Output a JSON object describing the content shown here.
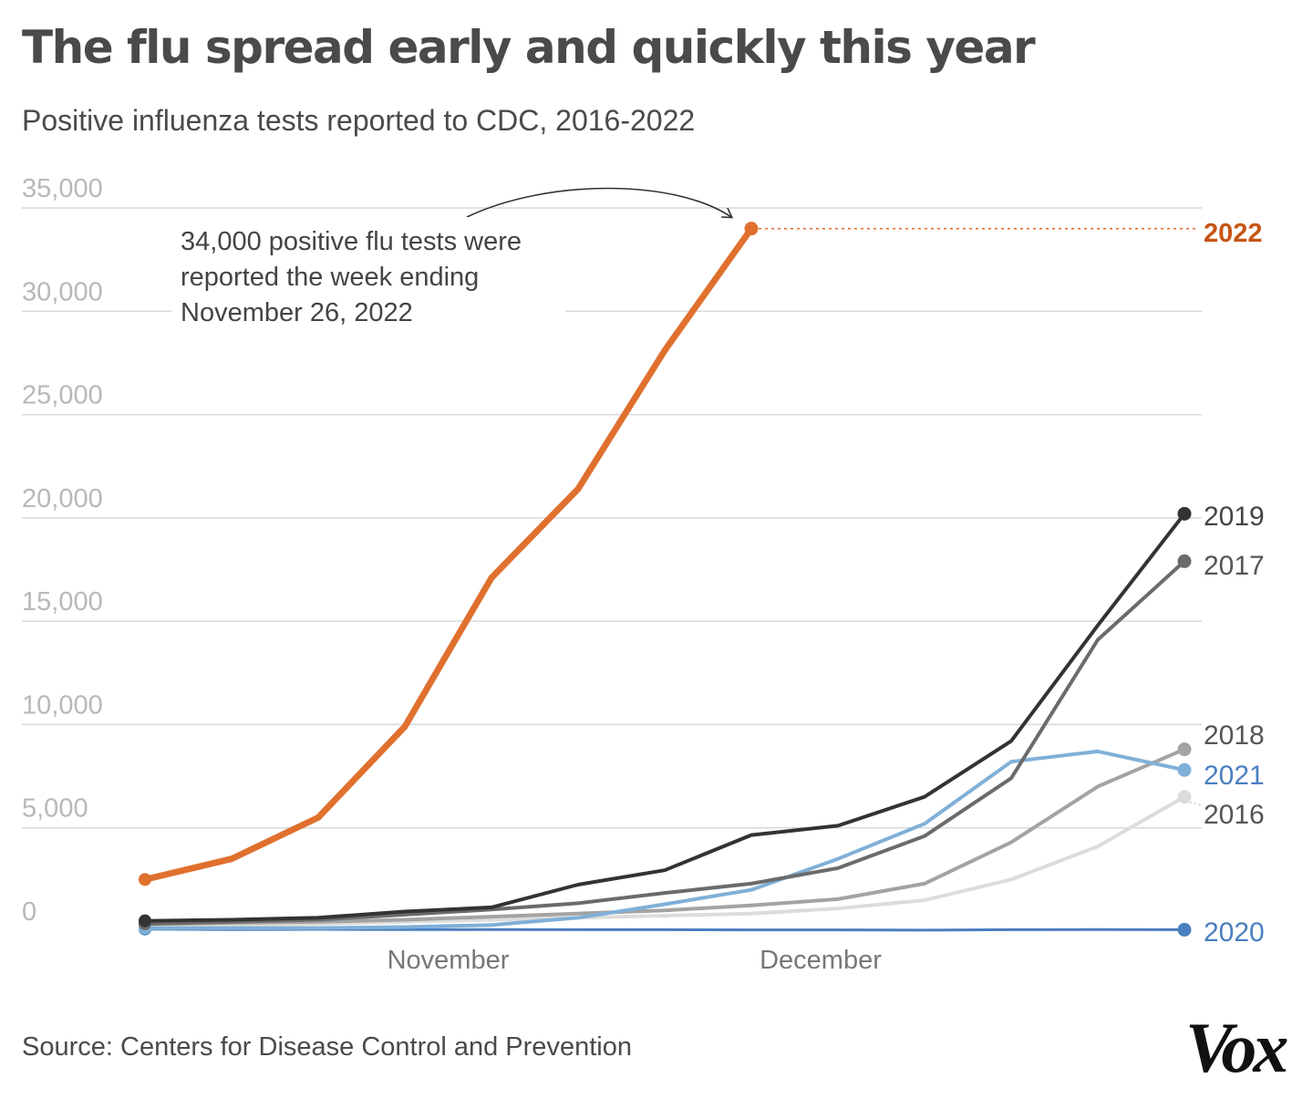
{
  "header": {
    "title": "The flu spread early and quickly this year",
    "subtitle": "Positive influenza tests reported to CDC, 2016-2022"
  },
  "footer": {
    "source": "Source: Centers for Disease Control and Prevention",
    "logo": "Vox"
  },
  "chart_data": {
    "type": "line",
    "ylim": [
      0,
      35000
    ],
    "y_ticks": [
      {
        "value": 0,
        "label": "0"
      },
      {
        "value": 5000,
        "label": "5,000"
      },
      {
        "value": 10000,
        "label": "10,000"
      },
      {
        "value": 15000,
        "label": "15,000"
      },
      {
        "value": 20000,
        "label": "20,000"
      },
      {
        "value": 25000,
        "label": "25,000"
      },
      {
        "value": 30000,
        "label": "30,000"
      },
      {
        "value": 35000,
        "label": "35,000"
      }
    ],
    "x_ticks": [
      {
        "week": 3.5,
        "label": "November"
      },
      {
        "week": 7.8,
        "label": "December"
      }
    ],
    "grid": true,
    "annotation": {
      "text_lines": [
        "34,000 positive flu tests were",
        "reported the week ending",
        "November 26, 2022"
      ],
      "series": "2022",
      "week": 7,
      "value": 34000
    },
    "series": [
      {
        "name": "2020",
        "color": "#4a7fbf",
        "width": 3,
        "label_color": "#4a7fbf",
        "label_bold": false,
        "points": [
          [
            0,
            100
          ],
          [
            1,
            80
          ],
          [
            2,
            90
          ],
          [
            3,
            80
          ],
          [
            4,
            80
          ],
          [
            5,
            70
          ],
          [
            6,
            70
          ],
          [
            7,
            60
          ],
          [
            8,
            60
          ],
          [
            9,
            50
          ],
          [
            10,
            70
          ],
          [
            11,
            80
          ],
          [
            12,
            70
          ]
        ]
      },
      {
        "name": "2016",
        "color": "#dcdcdc",
        "width": 4,
        "label_color": "#555555",
        "label_bold": false,
        "points": [
          [
            0,
            250
          ],
          [
            1,
            300
          ],
          [
            2,
            350
          ],
          [
            3,
            450
          ],
          [
            4,
            550
          ],
          [
            5,
            650
          ],
          [
            6,
            750
          ],
          [
            7,
            850
          ],
          [
            8,
            1100
          ],
          [
            9,
            1500
          ],
          [
            10,
            2500
          ],
          [
            11,
            4100
          ],
          [
            12,
            6500
          ]
        ]
      },
      {
        "name": "2018",
        "color": "#a3a3a3",
        "width": 4,
        "label_color": "#555555",
        "label_bold": false,
        "points": [
          [
            0,
            350
          ],
          [
            1,
            400
          ],
          [
            2,
            450
          ],
          [
            3,
            550
          ],
          [
            4,
            700
          ],
          [
            5,
            850
          ],
          [
            6,
            1000
          ],
          [
            7,
            1250
          ],
          [
            8,
            1550
          ],
          [
            9,
            2300
          ],
          [
            10,
            4300
          ],
          [
            11,
            7000
          ],
          [
            12,
            8800
          ]
        ]
      },
      {
        "name": "2021",
        "color": "#7fb0d8",
        "width": 4,
        "label_color": "#4a7fbf",
        "label_bold": false,
        "points": [
          [
            0,
            150
          ],
          [
            1,
            150
          ],
          [
            2,
            150
          ],
          [
            3,
            200
          ],
          [
            4,
            300
          ],
          [
            5,
            650
          ],
          [
            6,
            1300
          ],
          [
            7,
            2000
          ],
          [
            8,
            3500
          ],
          [
            9,
            5200
          ],
          [
            10,
            8200
          ],
          [
            11,
            8700
          ],
          [
            12,
            7800
          ]
        ]
      },
      {
        "name": "2017",
        "color": "#6b6b6b",
        "width": 4,
        "label_color": "#555555",
        "label_bold": false,
        "points": [
          [
            0,
            350
          ],
          [
            1,
            450
          ],
          [
            2,
            550
          ],
          [
            3,
            800
          ],
          [
            4,
            1050
          ],
          [
            5,
            1350
          ],
          [
            6,
            1850
          ],
          [
            7,
            2300
          ],
          [
            8,
            3050
          ],
          [
            9,
            4600
          ],
          [
            10,
            7400
          ],
          [
            11,
            14100
          ],
          [
            12,
            17900
          ]
        ]
      },
      {
        "name": "2019",
        "color": "#333333",
        "width": 4,
        "label_color": "#444444",
        "label_bold": false,
        "points": [
          [
            0,
            500
          ],
          [
            1,
            550
          ],
          [
            2,
            650
          ],
          [
            3,
            950
          ],
          [
            4,
            1150
          ],
          [
            5,
            2250
          ],
          [
            6,
            2950
          ],
          [
            7,
            4650
          ],
          [
            8,
            5100
          ],
          [
            9,
            6500
          ],
          [
            10,
            9200
          ],
          [
            11,
            14800
          ],
          [
            12,
            20200
          ]
        ]
      },
      {
        "name": "2022",
        "color": "#e0702e",
        "width": 7,
        "label_color": "#c55514",
        "label_bold": true,
        "leader": "dotted",
        "points": [
          [
            0,
            2500
          ],
          [
            1,
            3500
          ],
          [
            2,
            5500
          ],
          [
            3,
            9900
          ],
          [
            4,
            17100
          ],
          [
            5,
            21400
          ],
          [
            6,
            28100
          ],
          [
            7,
            34000
          ]
        ]
      }
    ]
  }
}
